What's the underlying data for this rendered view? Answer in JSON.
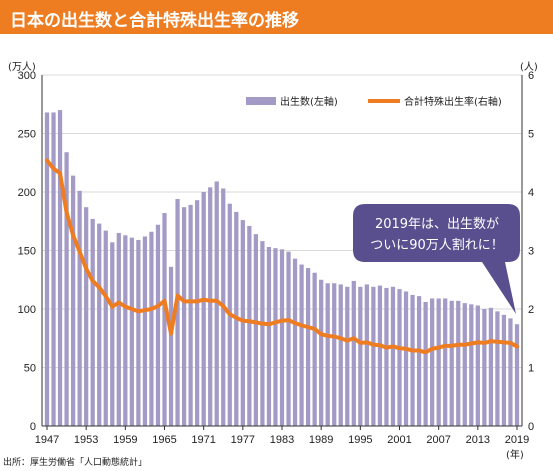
{
  "title": "日本の出生数と合計特殊出生率の推移",
  "source": "出所：厚生労働省「人口動態統計」",
  "colors": {
    "title_bg": "#ee7d22",
    "bar": "#a49ac6",
    "line": "#ee7d22",
    "callout": "#5a4f8e",
    "grid": "#d9d9d9"
  },
  "chart_data": {
    "type": "bar",
    "left_unit": "(万人)",
    "right_unit": "(人)",
    "x_unit": "(年)",
    "x_tick_labels": [
      "1947",
      "1953",
      "1959",
      "1965",
      "1971",
      "1977",
      "1983",
      "1989",
      "1995",
      "2001",
      "2007",
      "2013",
      "2019"
    ],
    "left_ticks": [
      "0",
      "50",
      "100",
      "150",
      "200",
      "250",
      "300"
    ],
    "right_ticks": [
      "0",
      "1",
      "2",
      "3",
      "4",
      "5",
      "6"
    ],
    "left_ylim": [
      0,
      300
    ],
    "right_ylim": [
      0,
      6
    ],
    "legend": {
      "placement": "top-right",
      "bar_label": "出生数(左軸)",
      "line_label": "合計特殊出生率(右軸)"
    },
    "callout": {
      "lines": [
        "2019年は、出生数が",
        "ついに90万人割れに！"
      ]
    },
    "years": [
      1947,
      1948,
      1949,
      1950,
      1951,
      1952,
      1953,
      1954,
      1955,
      1956,
      1957,
      1958,
      1959,
      1960,
      1961,
      1962,
      1963,
      1964,
      1965,
      1966,
      1967,
      1968,
      1969,
      1970,
      1971,
      1972,
      1973,
      1974,
      1975,
      1976,
      1977,
      1978,
      1979,
      1980,
      1981,
      1982,
      1983,
      1984,
      1985,
      1986,
      1987,
      1988,
      1989,
      1990,
      1991,
      1992,
      1993,
      1994,
      1995,
      1996,
      1997,
      1998,
      1999,
      2000,
      2001,
      2002,
      2003,
      2004,
      2005,
      2006,
      2007,
      2008,
      2009,
      2010,
      2011,
      2012,
      2013,
      2014,
      2015,
      2016,
      2017,
      2018,
      2019
    ],
    "series": [
      {
        "name": "出生数(左軸)",
        "axis": "left",
        "type": "bar",
        "values": [
          268,
          268,
          270,
          234,
          214,
          201,
          187,
          177,
          173,
          167,
          157,
          165,
          163,
          161,
          159,
          162,
          166,
          172,
          182,
          136,
          194,
          187,
          189,
          193,
          200,
          204,
          209,
          203,
          190,
          183,
          176,
          171,
          164,
          158,
          153,
          152,
          151,
          149,
          143,
          138,
          135,
          131,
          125,
          122,
          122,
          121,
          119,
          124,
          119,
          121,
          119,
          120,
          118,
          119,
          117,
          115,
          112,
          111,
          106,
          109,
          109,
          109,
          107,
          107,
          105,
          104,
          103,
          100,
          101,
          98,
          95,
          92,
          87
        ]
      },
      {
        "name": "合計特殊出生率(右軸)",
        "axis": "right",
        "type": "line",
        "values": [
          4.54,
          4.4,
          4.32,
          3.65,
          3.26,
          2.98,
          2.69,
          2.48,
          2.37,
          2.22,
          2.04,
          2.11,
          2.04,
          2.0,
          1.96,
          1.98,
          2.0,
          2.05,
          2.14,
          1.58,
          2.23,
          2.13,
          2.13,
          2.13,
          2.16,
          2.14,
          2.14,
          2.05,
          1.91,
          1.85,
          1.8,
          1.79,
          1.77,
          1.75,
          1.74,
          1.77,
          1.8,
          1.81,
          1.76,
          1.72,
          1.69,
          1.66,
          1.57,
          1.54,
          1.53,
          1.5,
          1.46,
          1.5,
          1.42,
          1.43,
          1.39,
          1.38,
          1.34,
          1.36,
          1.33,
          1.32,
          1.29,
          1.29,
          1.26,
          1.32,
          1.34,
          1.37,
          1.37,
          1.39,
          1.39,
          1.41,
          1.43,
          1.42,
          1.45,
          1.44,
          1.43,
          1.42,
          1.36
        ]
      }
    ]
  }
}
